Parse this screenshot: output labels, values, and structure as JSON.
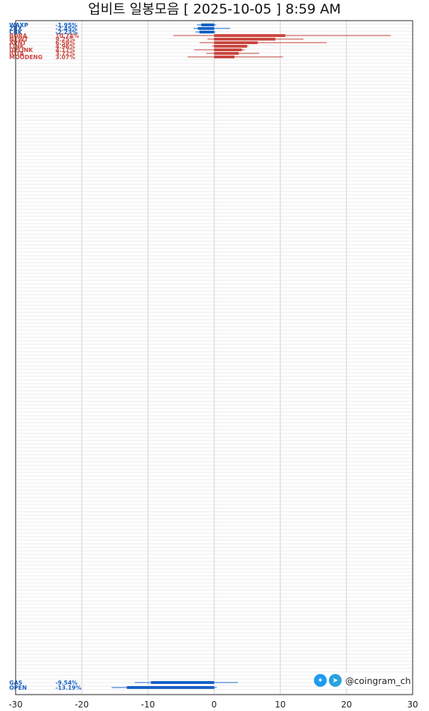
{
  "title": "업비트 일봉모음 [ 2025-10-05 ]  8:59 AM",
  "watermark": "@coingram_ch",
  "chart_data": {
    "type": "bar",
    "orientation": "horizontal",
    "title": "업비트 일봉모음 [ 2025-10-05 ]  8:59 AM",
    "xlim": [
      -30,
      30
    ],
    "x_ticks": [
      "-30",
      "-20",
      "-10",
      "0",
      "10",
      "20",
      "30"
    ],
    "grid": true,
    "colors": {
      "up": "#c9473f",
      "down": "#1661c7",
      "flat": "#000000"
    },
    "top_items": [
      {
        "name": "WAXP",
        "label": "-1.95%",
        "value": -1.95,
        "high": 0.3,
        "low": -2.6
      },
      {
        "name": "ZRX",
        "label": "-2.45%",
        "value": -2.45,
        "high": 2.4,
        "low": -3.1
      },
      {
        "name": "CBK",
        "label": "-2.23%",
        "value": -2.23,
        "high": 0.2,
        "low": -2.8
      },
      {
        "name": "BORA",
        "label": "10.74%",
        "value": 10.74,
        "high": 26.7,
        "low": -6.2
      },
      {
        "name": "NEWT",
        "label": "9.25%",
        "value": 9.25,
        "high": 13.5,
        "low": -1.0
      },
      {
        "name": "AVNT",
        "label": "6.58%",
        "value": 6.58,
        "high": 17.0,
        "low": -2.2
      },
      {
        "name": "LINK",
        "label": "4.96%",
        "value": 4.96,
        "high": 5.2,
        "low": -0.3
      },
      {
        "name": "UPLINK",
        "label": "4.17%",
        "value": 4.17,
        "high": 4.6,
        "low": -3.0
      },
      {
        "name": "IOTA",
        "label": "3.72%",
        "value": 3.72,
        "high": 6.8,
        "low": -1.2
      },
      {
        "name": "MOODENG",
        "label": "3.07%",
        "value": 3.07,
        "high": 10.4,
        "low": -4.0
      }
    ],
    "bottom_items": [
      {
        "name": "GAS",
        "label": "-9.54%",
        "value": -9.54,
        "high": 3.6,
        "low": -12.0
      },
      {
        "name": "OPEN",
        "label": "-13.19%",
        "value": -13.19,
        "high": 0.4,
        "low": -15.5
      }
    ]
  }
}
